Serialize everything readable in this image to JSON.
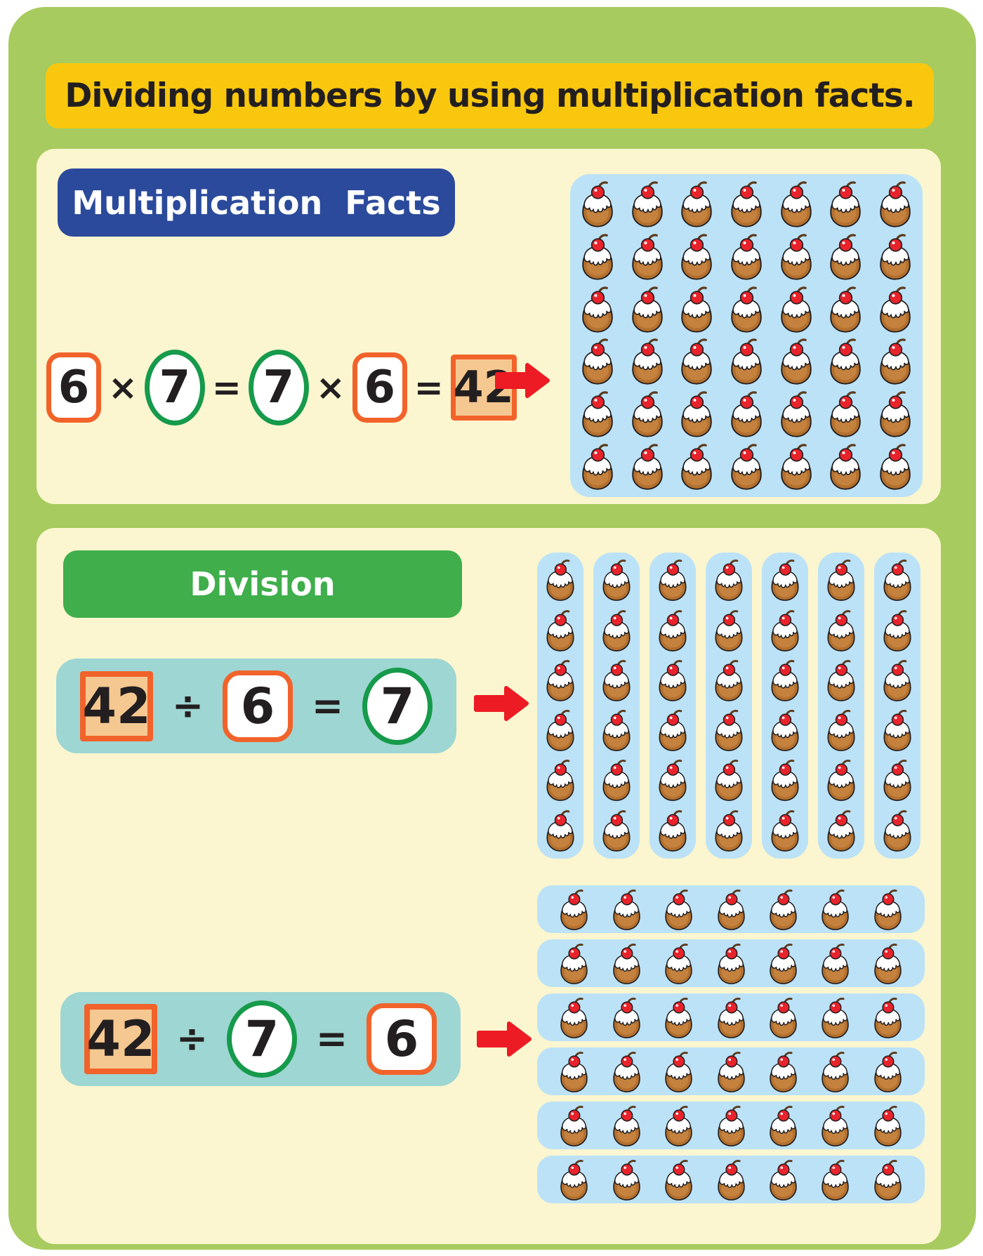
{
  "page": {
    "title": "Dividing numbers by using multiplication facts."
  },
  "colors": {
    "card_green": "#a7cb5e",
    "title_yellow": "#f9c70e",
    "panel_cream": "#fbf6cf",
    "badge_blue": "#2b4a9b",
    "badge_green": "#3fae4b",
    "teal_box": "#9ed6d3",
    "cupcake_box_blue": "#bce2f7",
    "accent_orange": "#f1632a",
    "accent_green": "#169a4b",
    "result_peach": "#f6c891",
    "arrow_red": "#ec1b24",
    "ink": "#231f20"
  },
  "icons": {
    "item": "cupcake-icon",
    "arrow": "red-arrow-icon"
  },
  "multiplication_section": {
    "badge_label": "Multiplication Facts",
    "equation_tokens": [
      {
        "text": "6",
        "style": "orange-box"
      },
      {
        "text": "×",
        "style": "op"
      },
      {
        "text": "7",
        "style": "green-oval"
      },
      {
        "text": "=",
        "style": "op"
      },
      {
        "text": "7",
        "style": "green-oval"
      },
      {
        "text": "×",
        "style": "op"
      },
      {
        "text": "6",
        "style": "orange-box"
      },
      {
        "text": "=",
        "style": "op"
      },
      {
        "text": "42",
        "style": "result-box"
      }
    ],
    "grid": {
      "rows": 6,
      "cols": 7,
      "total_items": 42,
      "item": "cupcake"
    }
  },
  "division_section": {
    "badge_label": "Division",
    "equations": [
      {
        "tokens": [
          {
            "text": "42",
            "style": "result-box"
          },
          {
            "text": "÷",
            "style": "op"
          },
          {
            "text": "6",
            "style": "orange-box"
          },
          {
            "text": "=",
            "style": "op"
          },
          {
            "text": "7",
            "style": "green-oval"
          }
        ],
        "groups": {
          "count": 7,
          "per_group": 6,
          "orientation": "column",
          "item": "cupcake",
          "total_items": 42
        }
      },
      {
        "tokens": [
          {
            "text": "42",
            "style": "result-box"
          },
          {
            "text": "÷",
            "style": "op"
          },
          {
            "text": "7",
            "style": "green-oval"
          },
          {
            "text": "=",
            "style": "op"
          },
          {
            "text": "6",
            "style": "orange-box"
          }
        ],
        "groups": {
          "count": 6,
          "per_group": 7,
          "orientation": "row",
          "item": "cupcake",
          "total_items": 42
        }
      }
    ]
  }
}
